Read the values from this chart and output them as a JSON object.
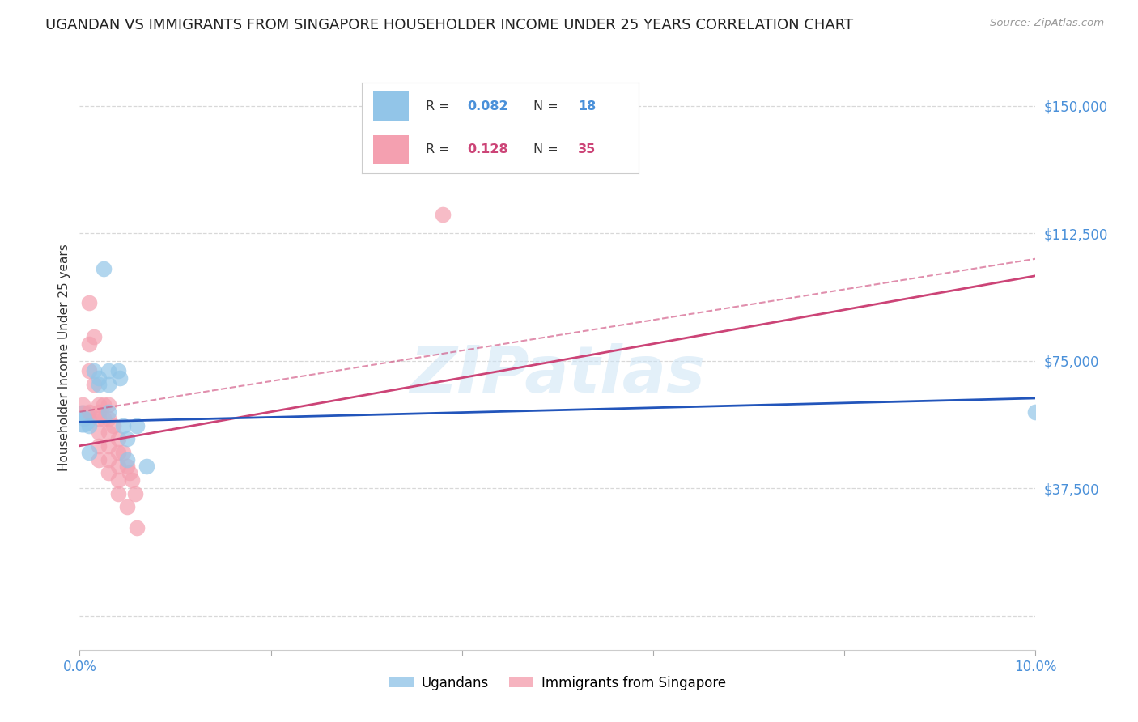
{
  "title": "UGANDAN VS IMMIGRANTS FROM SINGAPORE HOUSEHOLDER INCOME UNDER 25 YEARS CORRELATION CHART",
  "source": "Source: ZipAtlas.com",
  "ylabel": "Householder Income Under 25 years",
  "xlim": [
    0.0,
    0.1
  ],
  "ylim": [
    -10000,
    162000
  ],
  "yticks": [
    0,
    37500,
    75000,
    112500,
    150000
  ],
  "ytick_labels": [
    "",
    "$37,500",
    "$75,000",
    "$112,500",
    "$150,000"
  ],
  "xticks": [
    0.0,
    0.02,
    0.04,
    0.06,
    0.08,
    0.1
  ],
  "xtick_labels": [
    "0.0%",
    "",
    "",
    "",
    "",
    "10.0%"
  ],
  "watermark": "ZIPatlas",
  "blue_color": "#92c5e8",
  "pink_color": "#f4a0b0",
  "blue_line_color": "#2255bb",
  "pink_line_color": "#cc4477",
  "blue_line_x": [
    0.0,
    0.1
  ],
  "blue_line_y": [
    57000,
    64000
  ],
  "pink_line_x": [
    0.0,
    0.1
  ],
  "pink_line_y": [
    50000,
    100000
  ],
  "blue_scatter_x": [
    0.0005,
    0.001,
    0.001,
    0.0015,
    0.002,
    0.002,
    0.0025,
    0.003,
    0.003,
    0.003,
    0.004,
    0.0042,
    0.0045,
    0.005,
    0.005,
    0.006,
    0.007,
    0.1
  ],
  "blue_scatter_y": [
    58000,
    56000,
    48000,
    72000,
    70000,
    68000,
    102000,
    72000,
    68000,
    60000,
    72000,
    70000,
    56000,
    52000,
    46000,
    56000,
    44000,
    60000
  ],
  "pink_scatter_x": [
    0.0003,
    0.001,
    0.001,
    0.001,
    0.001,
    0.0015,
    0.0015,
    0.002,
    0.002,
    0.002,
    0.002,
    0.002,
    0.002,
    0.0025,
    0.0025,
    0.003,
    0.003,
    0.003,
    0.003,
    0.003,
    0.003,
    0.0035,
    0.004,
    0.004,
    0.004,
    0.004,
    0.004,
    0.0045,
    0.005,
    0.0052,
    0.0055,
    0.0058,
    0.038,
    0.005,
    0.006
  ],
  "pink_scatter_y": [
    62000,
    92000,
    80000,
    72000,
    60000,
    82000,
    68000,
    62000,
    60000,
    58000,
    54000,
    50000,
    46000,
    62000,
    58000,
    62000,
    58000,
    54000,
    50000,
    46000,
    42000,
    56000,
    52000,
    48000,
    44000,
    40000,
    36000,
    48000,
    44000,
    42000,
    40000,
    36000,
    118000,
    32000,
    26000
  ],
  "grid_color": "#d8d8d8",
  "background_color": "#ffffff",
  "title_fontsize": 13,
  "axis_label_fontsize": 11,
  "tick_fontsize": 12,
  "legend_r1_val": "0.082",
  "legend_n1_val": "18",
  "legend_r2_val": "0.128",
  "legend_n2_val": "35",
  "tick_color": "#4a90d9",
  "label_color": "#333333"
}
